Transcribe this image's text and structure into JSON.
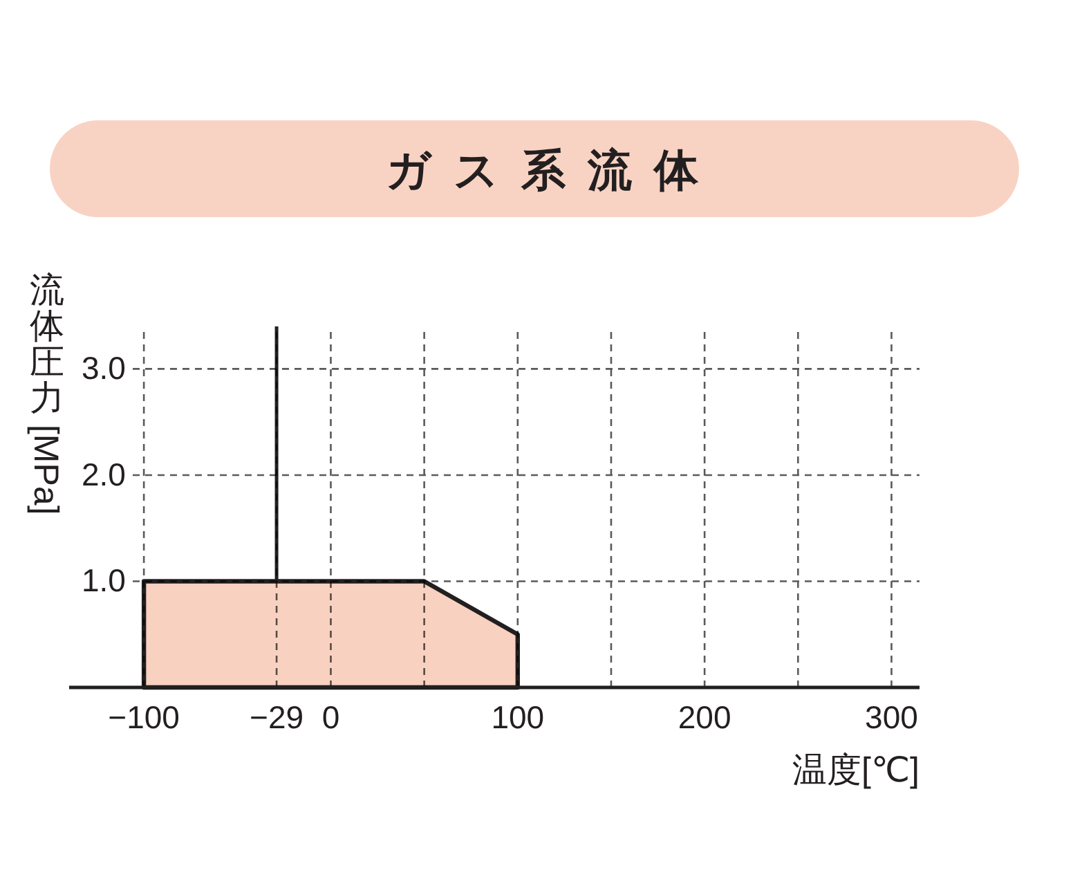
{
  "chart_data": {
    "type": "area",
    "title": "ガス系流体",
    "xlabel": "温度[℃]",
    "ylabel": "流体圧力 [MPa]",
    "x": [
      -100,
      50,
      100
    ],
    "values": [
      1.0,
      1.0,
      0.5
    ],
    "color": "#f8d1c0",
    "xlim": [
      -140,
      315
    ],
    "xticks": [
      {
        "value": -100,
        "label": "−100"
      },
      {
        "value": -29,
        "label": "−29"
      },
      0,
      {
        "value": 50,
        "label": null
      },
      100,
      {
        "value": 150,
        "label": null
      },
      200,
      {
        "value": 250,
        "label": null
      },
      300
    ],
    "ylim": [
      0,
      3.4
    ],
    "yticks": [
      {
        "value": 1,
        "label": "1.0"
      },
      {
        "value": 2,
        "label": "2.0"
      },
      {
        "value": 3,
        "label": "3.0"
      }
    ],
    "grid": true,
    "ref_lines": [
      {
        "axis": "x",
        "value": -29,
        "color": "#231f20",
        "line_style": "solid"
      }
    ]
  }
}
